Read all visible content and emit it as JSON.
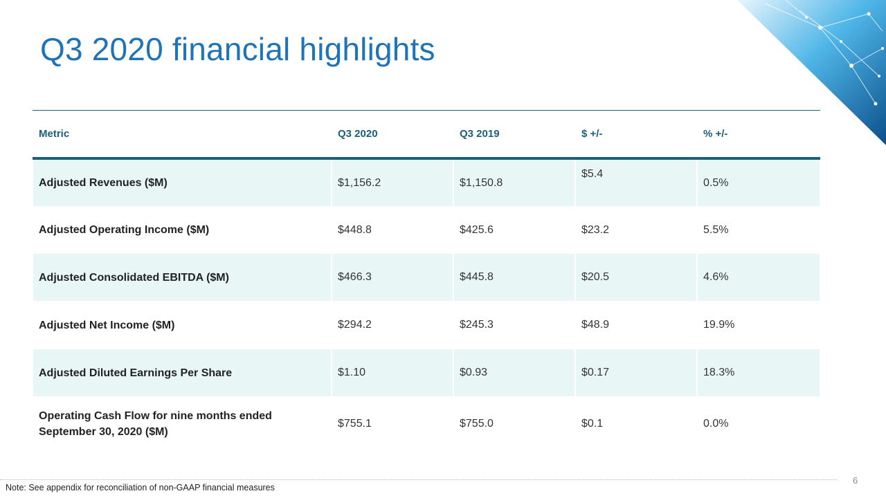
{
  "slide": {
    "title": "Q3 2020 financial highlights",
    "page_number": "6",
    "note": "Note: See appendix for reconciliation of non-GAAP financial measures",
    "accent_color": "#1f73b7",
    "table_color": "#1c5f78",
    "shade_color": "#e9f6f6"
  },
  "table": {
    "headers": [
      "Metric",
      "Q3 2020",
      "Q3 2019",
      "$ +/-",
      "% +/-"
    ],
    "rows": [
      [
        "Adjusted Revenues ($M)",
        "$1,156.2",
        "$1,150.8",
        "$5.4",
        "0.5%"
      ],
      [
        "Adjusted Operating Income ($M)",
        "$448.8",
        "$425.6",
        "$23.2",
        "5.5%"
      ],
      [
        "Adjusted Consolidated EBITDA ($M)",
        "$466.3",
        "$445.8",
        "$20.5",
        "4.6%"
      ],
      [
        "Adjusted Net Income ($M)",
        "$294.2",
        "$245.3",
        "$48.9",
        "19.9%"
      ],
      [
        "Adjusted Diluted Earnings Per Share",
        "$1.10",
        "$0.93",
        "$0.17",
        "18.3%"
      ],
      [
        "Operating Cash Flow for nine months ended September 30, 2020 ($M)",
        "$755.1",
        "$755.0",
        "$0.1",
        "0.0%"
      ]
    ]
  }
}
